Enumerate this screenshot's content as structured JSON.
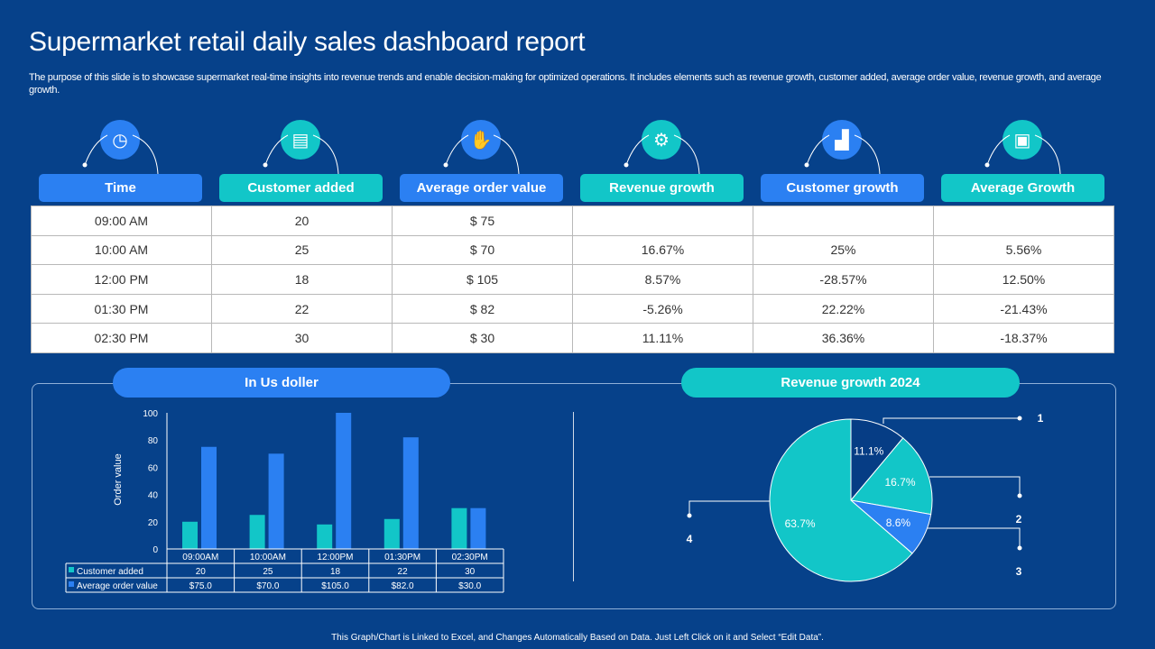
{
  "title": "Supermarket retail daily sales dashboard report",
  "description": "The purpose of this slide is to showcase supermarket real-time insights into revenue trends and enable decision-making for optimized operations. It includes elements such as revenue growth,  customer added, average order value, revenue growth, and average growth.",
  "columns": [
    {
      "label": "Time",
      "icon": "clock-check-icon",
      "style": "blue"
    },
    {
      "label": "Customer added",
      "icon": "customer-list-icon",
      "style": "teal"
    },
    {
      "label": "Average order value",
      "icon": "hand-money-icon",
      "style": "blue"
    },
    {
      "label": "Revenue growth",
      "icon": "gear-dollar-icon",
      "style": "teal"
    },
    {
      "label": "Customer growth",
      "icon": "growth-chart-people-icon",
      "style": "blue"
    },
    {
      "label": "Average Growth",
      "icon": "analytics-screen-icon",
      "style": "teal"
    }
  ],
  "rows": [
    [
      "09:00 AM",
      "20",
      "$ 75",
      "",
      "",
      ""
    ],
    [
      "10:00 AM",
      "25",
      "$ 70",
      "16.67%",
      "25%",
      "5.56%"
    ],
    [
      "12:00 PM",
      "18",
      "$ 105",
      "8.57%",
      "-28.57%",
      "12.50%"
    ],
    [
      "01:30 PM",
      "22",
      "$ 82",
      "-5.26%",
      "22.22%",
      "-21.43%"
    ],
    [
      "02:30 PM",
      "30",
      "$ 30",
      "11.11%",
      "36.36%",
      "-18.37%"
    ]
  ],
  "bar_panel_title": "In Us doller",
  "pie_panel_title": "Revenue growth 2024",
  "footer": "This Graph/Chart is Linked to Excel, and Changes Automatically Based on Data. Just Left Click on it and Select “Edit Data”.",
  "colors": {
    "background": "#06418a",
    "blue": "#2b80f2",
    "teal": "#12c6c8",
    "navy": "#063d85"
  },
  "chart_data": [
    {
      "type": "bar",
      "ylabel": "Order value",
      "ylim": [
        0,
        100
      ],
      "yticks": [
        "0",
        "20",
        "40",
        "60",
        "80",
        "100"
      ],
      "categories": [
        "09:00AM",
        "10:00AM",
        "12:00PM",
        "01:30PM",
        "02:30PM"
      ],
      "series": [
        {
          "name": "Customer added",
          "values": [
            20,
            25,
            18,
            22,
            30
          ],
          "labels": [
            "20",
            "25",
            "18",
            "22",
            "30"
          ],
          "color": "#12c6c8"
        },
        {
          "name": "Average order value",
          "values": [
            75,
            70,
            105,
            82,
            30
          ],
          "labels": [
            "$75.0",
            "$70.0",
            "$105.0",
            "$82.0",
            "$30.0"
          ],
          "color": "#2b80f2"
        }
      ]
    },
    {
      "type": "pie",
      "slices": [
        {
          "label": "1",
          "value": 11.1,
          "text": "11.1%",
          "color": "#063d85"
        },
        {
          "label": "2",
          "value": 16.7,
          "text": "16.7%",
          "color": "#12c6c8"
        },
        {
          "label": "3",
          "value": 8.6,
          "text": "8.6%",
          "color": "#2b80f2"
        },
        {
          "label": "4",
          "value": 63.7,
          "text": "63.7%",
          "color": "#12c6c8"
        }
      ]
    }
  ]
}
